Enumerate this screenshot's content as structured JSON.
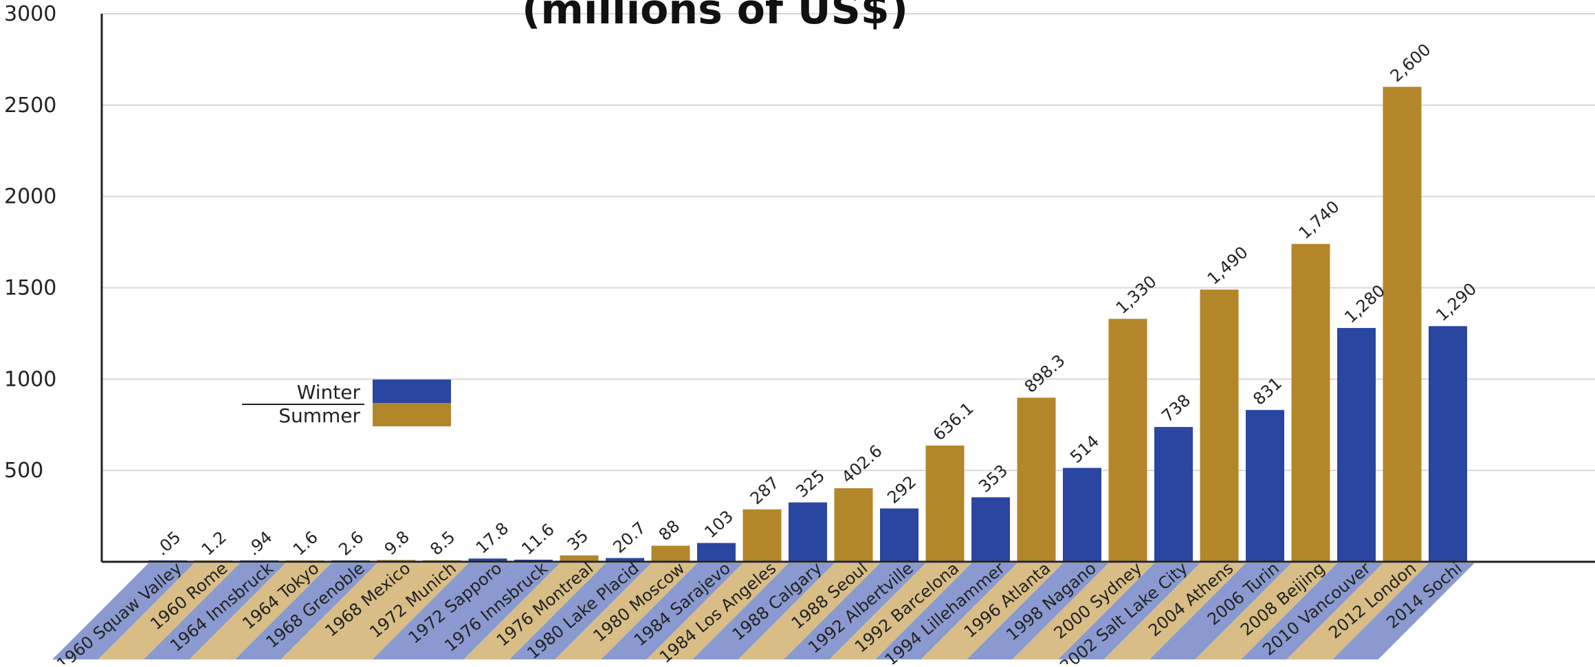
{
  "chart_data": {
    "type": "bar",
    "title": "(millions of US$)",
    "ylim": [
      0,
      3000
    ],
    "yticks": [
      "3000",
      "2500",
      "2000",
      "1500",
      "1000",
      "500"
    ],
    "grid": true,
    "legend_position": "center-left",
    "legend": [
      {
        "label": "Winter",
        "color": "#2a46a0"
      },
      {
        "label": "Summer",
        "color": "#b3862a"
      }
    ],
    "colors": {
      "Winter": "#2a46a0",
      "Summer": "#b3862a",
      "Winter_label_band": "#8a9ad0",
      "Summer_label_band": "#d8be86",
      "grid": "#d8d8d8",
      "axis": "#222222"
    },
    "categories": [
      "1960 Squaw Valley",
      "1960 Rome",
      "1964 Innsbruck",
      "1964 Tokyo",
      "1968 Grenoble",
      "1968 Mexico",
      "1972 Munich",
      "1972 Sapporo",
      "1976 Innsbruck",
      "1976 Montreal",
      "1980 Lake Placid",
      "1980 Moscow",
      "1984 Sarajevo",
      "1984 Los Angeles",
      "1988 Calgary",
      "1988 Seoul",
      "1992 Albertville",
      "1992 Barcelona",
      "1994 Lillehammer",
      "1996 Atlanta",
      "1998 Nagano",
      "2000 Sydney",
      "2002 Salt Lake City",
      "2004 Athens",
      "2006 Turin",
      "2008 Beijing",
      "2010 Vancouver",
      "2012 London",
      "2014 Sochi"
    ],
    "values": [
      0.05,
      1.2,
      0.94,
      1.6,
      2.6,
      9.8,
      8.5,
      17.8,
      11.6,
      35,
      20.7,
      88,
      103,
      287,
      325,
      402.6,
      292,
      636.1,
      353,
      898.3,
      514,
      1330,
      738,
      1490,
      831,
      1740,
      1280,
      2600,
      1290
    ],
    "season": [
      "Winter",
      "Summer",
      "Winter",
      "Summer",
      "Winter",
      "Summer",
      "Summer",
      "Winter",
      "Winter",
      "Summer",
      "Winter",
      "Summer",
      "Winter",
      "Summer",
      "Winter",
      "Summer",
      "Winter",
      "Summer",
      "Winter",
      "Summer",
      "Winter",
      "Summer",
      "Winter",
      "Summer",
      "Winter",
      "Summer",
      "Winter",
      "Summer",
      "Winter"
    ],
    "data_labels": [
      ".05",
      "1.2",
      ".94",
      "1.6",
      "2.6",
      "9.8",
      "8.5",
      "17.8",
      "11.6",
      "35",
      "20.7",
      "88",
      "103",
      "287",
      "325",
      "402.6",
      "292",
      "636.1",
      "353",
      "898.3",
      "514",
      "1,330",
      "738",
      "1,490",
      "831",
      "1,740",
      "1,280",
      "2,600",
      "1,290"
    ]
  }
}
